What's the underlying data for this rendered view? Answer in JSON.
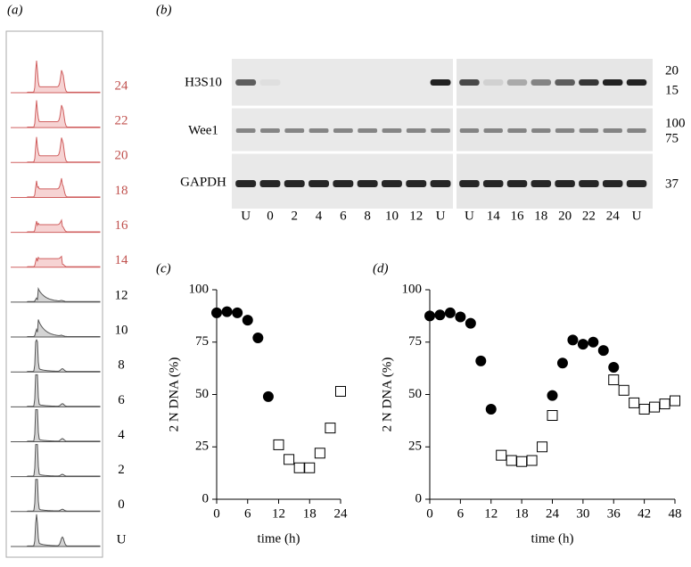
{
  "panel_a": {
    "label": "(a)",
    "rows": [
      "24",
      "22",
      "20",
      "18",
      "16",
      "14",
      "12",
      "10",
      "8",
      "6",
      "4",
      "2",
      "0",
      "U"
    ]
  },
  "panel_b": {
    "label": "(b)",
    "rows": [
      "H3S10",
      "Wee1",
      "GAPDH"
    ],
    "markers": [
      "20",
      "15",
      "100",
      "75",
      "37"
    ],
    "lanes_left": [
      "U",
      "0",
      "2",
      "4",
      "6",
      "8",
      "10",
      "12",
      "U"
    ],
    "lanes_right": [
      "U",
      "14",
      "16",
      "18",
      "20",
      "22",
      "24",
      "U"
    ]
  },
  "chart_data": [
    {
      "type": "scatter",
      "panel_label": "(c)",
      "x_label": "time (h)",
      "y_label": "2 N DNA (%)",
      "xlim": [
        0,
        24
      ],
      "xticks": [
        0,
        6,
        12,
        18,
        24
      ],
      "ylim": [
        0,
        100
      ],
      "yticks": [
        0,
        25,
        50,
        75,
        100
      ],
      "series": [
        {
          "color": "#000000",
          "marker": "circle",
          "filled": true,
          "x": [
            0,
            2,
            4,
            6,
            8,
            10
          ],
          "values": [
            89,
            89.5,
            89,
            85.5,
            77,
            49
          ]
        },
        {
          "color": "#000000",
          "marker": "square",
          "filled": false,
          "x": [
            12,
            14,
            16,
            18,
            20,
            22,
            24
          ],
          "values": [
            26,
            19,
            15,
            15,
            22,
            34,
            51.5
          ]
        }
      ]
    },
    {
      "type": "scatter",
      "panel_label": "(d)",
      "x_label": "time (h)",
      "y_label": "2 N DNA (%)",
      "xlim": [
        0,
        48
      ],
      "xticks": [
        0,
        6,
        12,
        18,
        24,
        30,
        36,
        42,
        48
      ],
      "ylim": [
        0,
        100
      ],
      "yticks": [
        0,
        25,
        50,
        75,
        100
      ],
      "series": [
        {
          "color": "#000000",
          "marker": "circle",
          "filled": true,
          "x": [
            0,
            2,
            4,
            6,
            8,
            10,
            12,
            24,
            26,
            28,
            30,
            32,
            34,
            36
          ],
          "values": [
            87.5,
            88,
            89,
            87,
            84,
            66,
            43,
            49.5,
            65,
            76,
            74,
            75,
            71,
            63
          ]
        },
        {
          "color": "#000000",
          "marker": "square",
          "filled": false,
          "x": [
            14,
            16,
            18,
            20,
            22,
            24,
            36,
            38,
            40,
            42,
            44,
            46,
            48
          ],
          "values": [
            21,
            18.5,
            18,
            18.5,
            25,
            40,
            57,
            52,
            46,
            43,
            44,
            45.5,
            47
          ]
        }
      ]
    }
  ]
}
